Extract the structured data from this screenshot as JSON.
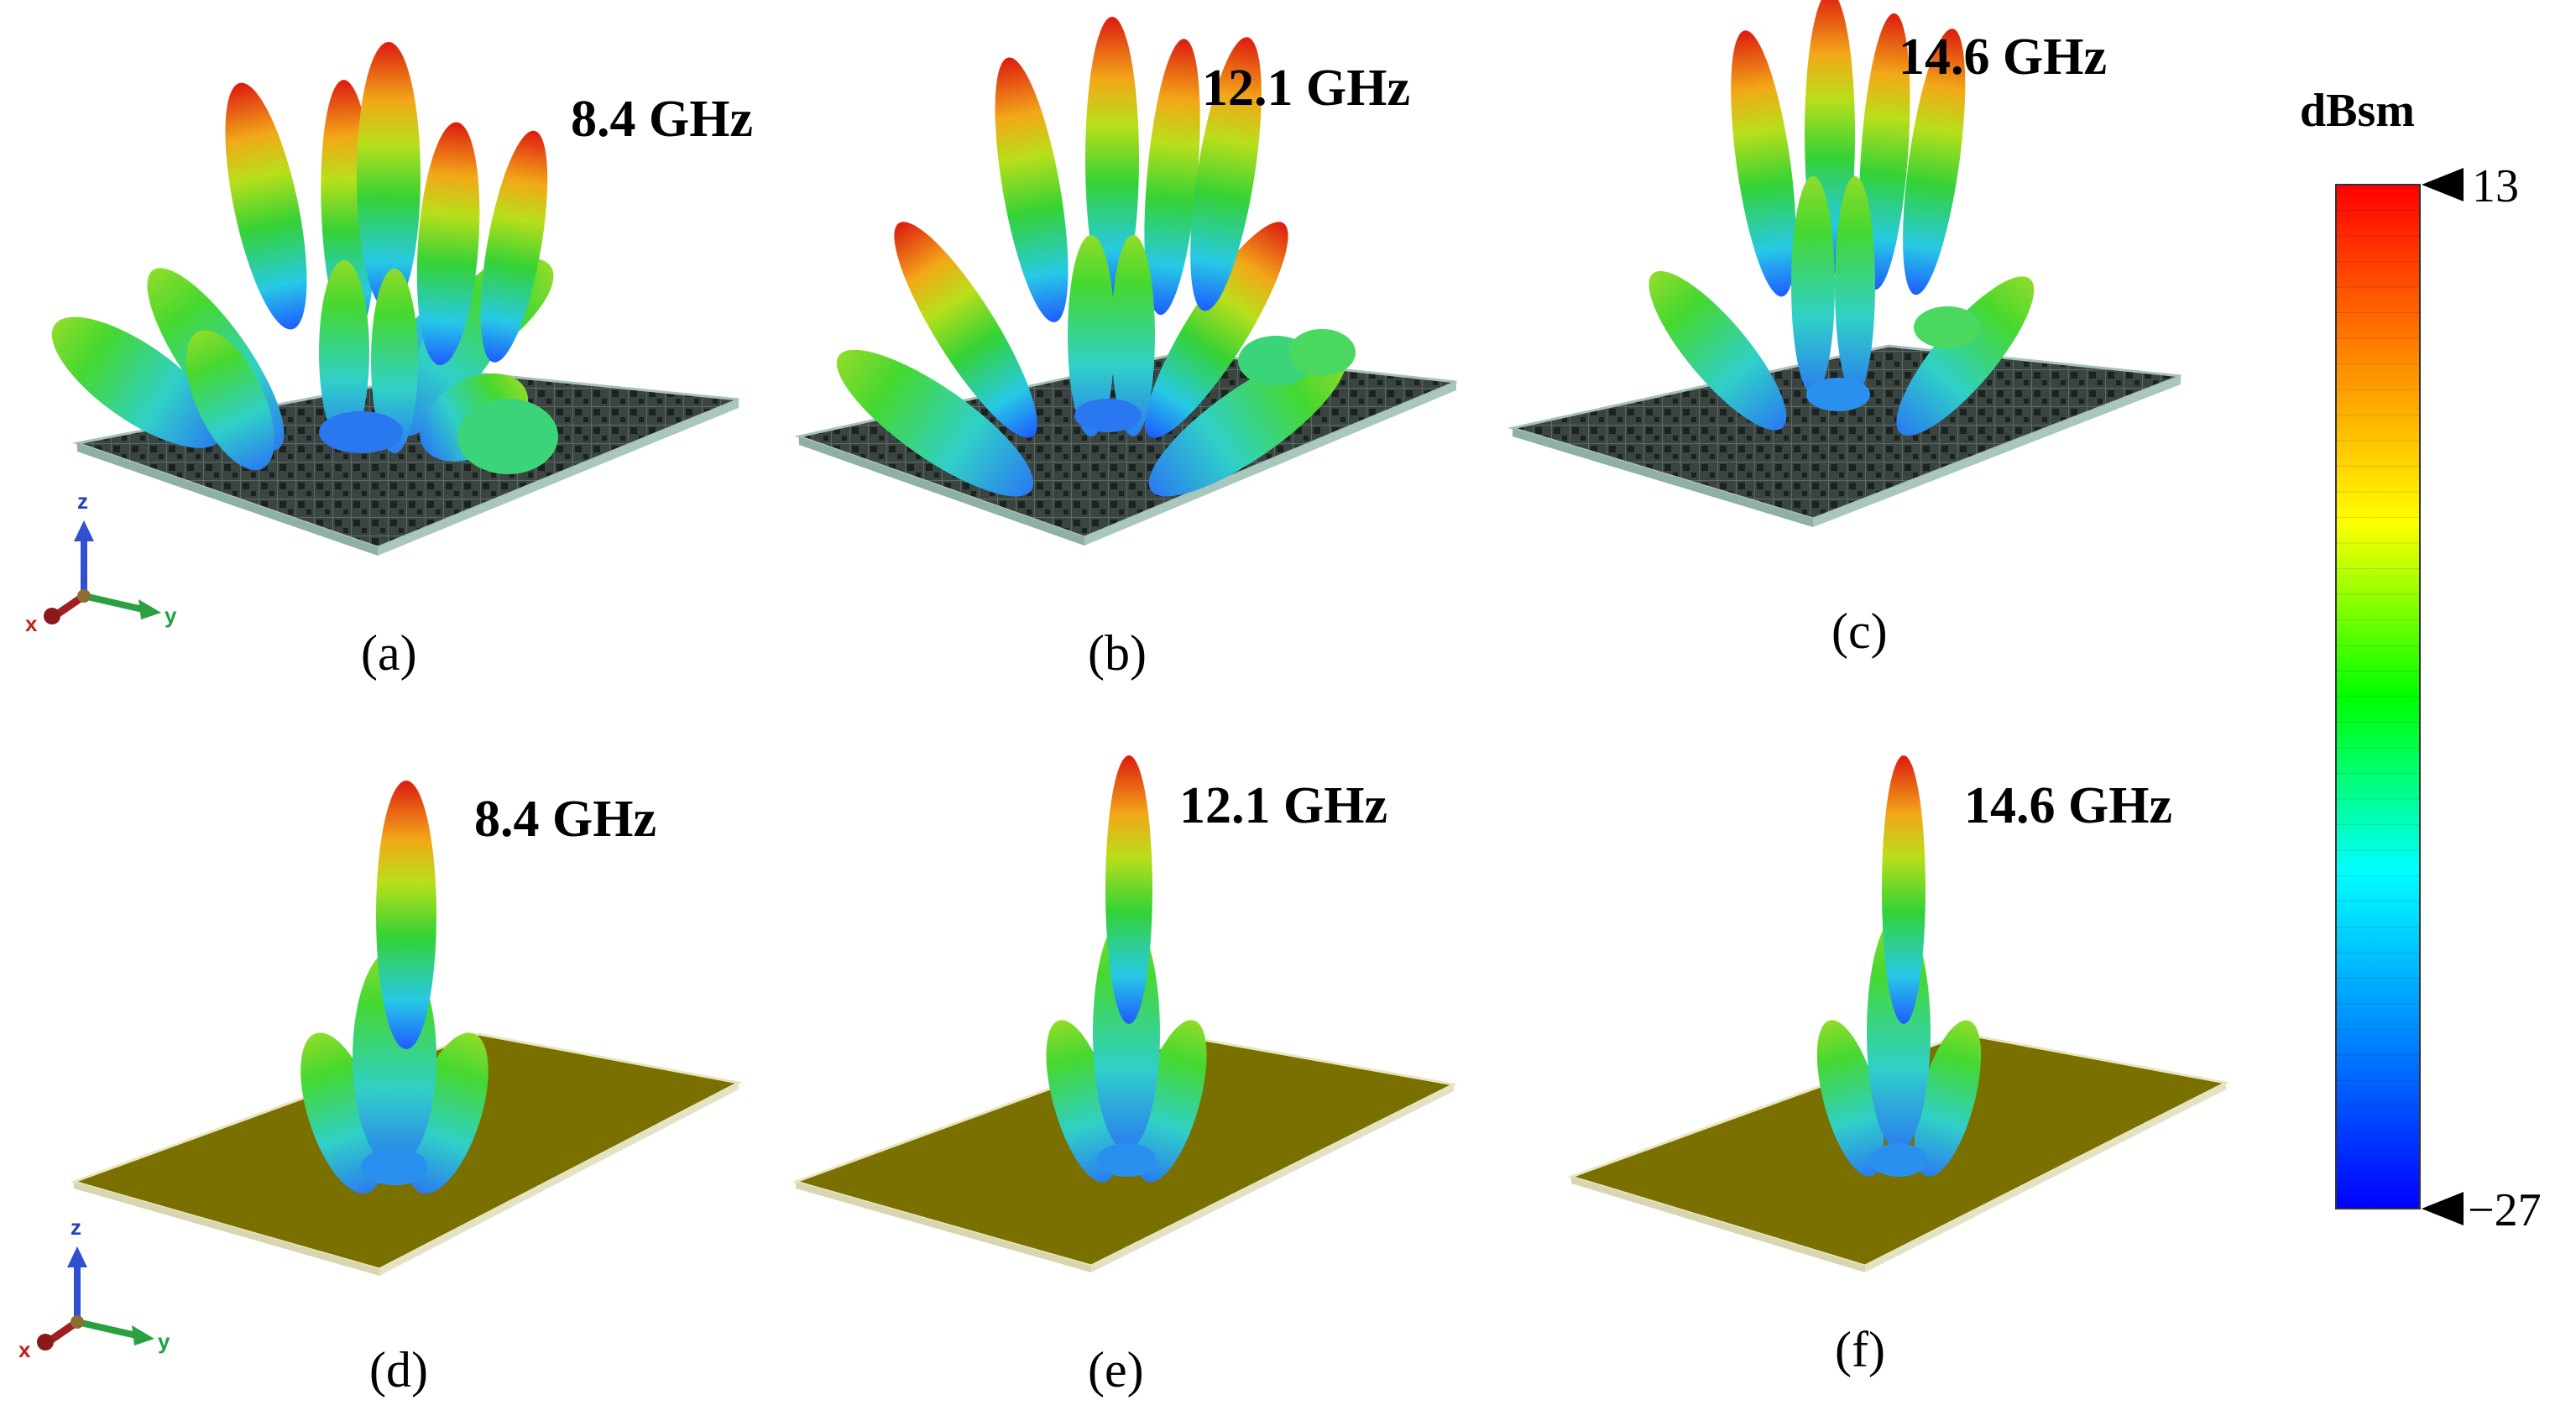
{
  "panels": [
    {
      "id": "a",
      "caption": "(a)",
      "freq": "8.4 GHz",
      "plate": "metasurface",
      "style": "scattered"
    },
    {
      "id": "b",
      "caption": "(b)",
      "freq": "12.1 GHz",
      "plate": "metasurface",
      "style": "scattered"
    },
    {
      "id": "c",
      "caption": "(c)",
      "freq": "14.6 GHz",
      "plate": "metasurface",
      "style": "scattered"
    },
    {
      "id": "d",
      "caption": "(d)",
      "freq": "8.4 GHz",
      "plate": "metal",
      "style": "specular"
    },
    {
      "id": "e",
      "caption": "(e)",
      "freq": "12.1 GHz",
      "plate": "metal",
      "style": "specular"
    },
    {
      "id": "f",
      "caption": "(f)",
      "freq": "14.6 GHz",
      "plate": "metal",
      "style": "specular"
    }
  ],
  "colorbar": {
    "title": "dBsm",
    "max_label": "13",
    "min_label": "−27",
    "max": 13,
    "min": -27,
    "colors": [
      "#0000ff",
      "#0088ff",
      "#00ffff",
      "#00ff00",
      "#ffff00",
      "#ff8800",
      "#ff0000"
    ]
  },
  "axes_triad": {
    "x": "x",
    "y": "y",
    "z": "z"
  },
  "colors": {
    "metasurface_plate": "#3b4640",
    "metal_plate": "#7a7000"
  }
}
